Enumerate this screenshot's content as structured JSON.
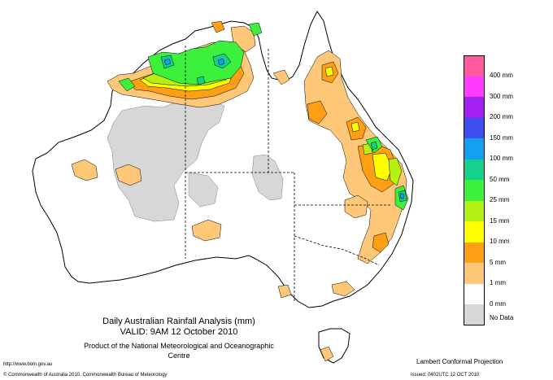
{
  "title": {
    "line1": "Daily Australian Rainfall Analysis (mm)",
    "line2": "VALID: 9AM 12 October 2010",
    "line3": "Product of the National Meteorological and Oceanographic Centre"
  },
  "footer": {
    "url": "http://www.bom.gov.au",
    "copyright": "© Commonwealth of Australia 2010, Commonwealth Bureau of Meteorology",
    "projection": "Lambert Conformal Projection",
    "issued": "Issued: 0402UTC 12 OCT 2010"
  },
  "legend": {
    "items": [
      {
        "label": "400 mm",
        "color": "#ff5aa0"
      },
      {
        "label": "300 mm",
        "color": "#ff3cff"
      },
      {
        "label": "200 mm",
        "color": "#a020f0"
      },
      {
        "label": "150 mm",
        "color": "#3c50f0"
      },
      {
        "label": "100 mm",
        "color": "#14a0f0"
      },
      {
        "label": "50 mm",
        "color": "#14d28c"
      },
      {
        "label": "25 mm",
        "color": "#3cf03c"
      },
      {
        "label": "15 mm",
        "color": "#b4f014"
      },
      {
        "label": "10 mm",
        "color": "#ffff00"
      },
      {
        "label": "5 mm",
        "color": "#ffa014"
      },
      {
        "label": "1 mm",
        "color": "#ffc878"
      },
      {
        "label": "0 mm",
        "color": "#ffffff"
      }
    ],
    "nodata_label": "No Data",
    "nodata_color": "#d7d7d7"
  }
}
